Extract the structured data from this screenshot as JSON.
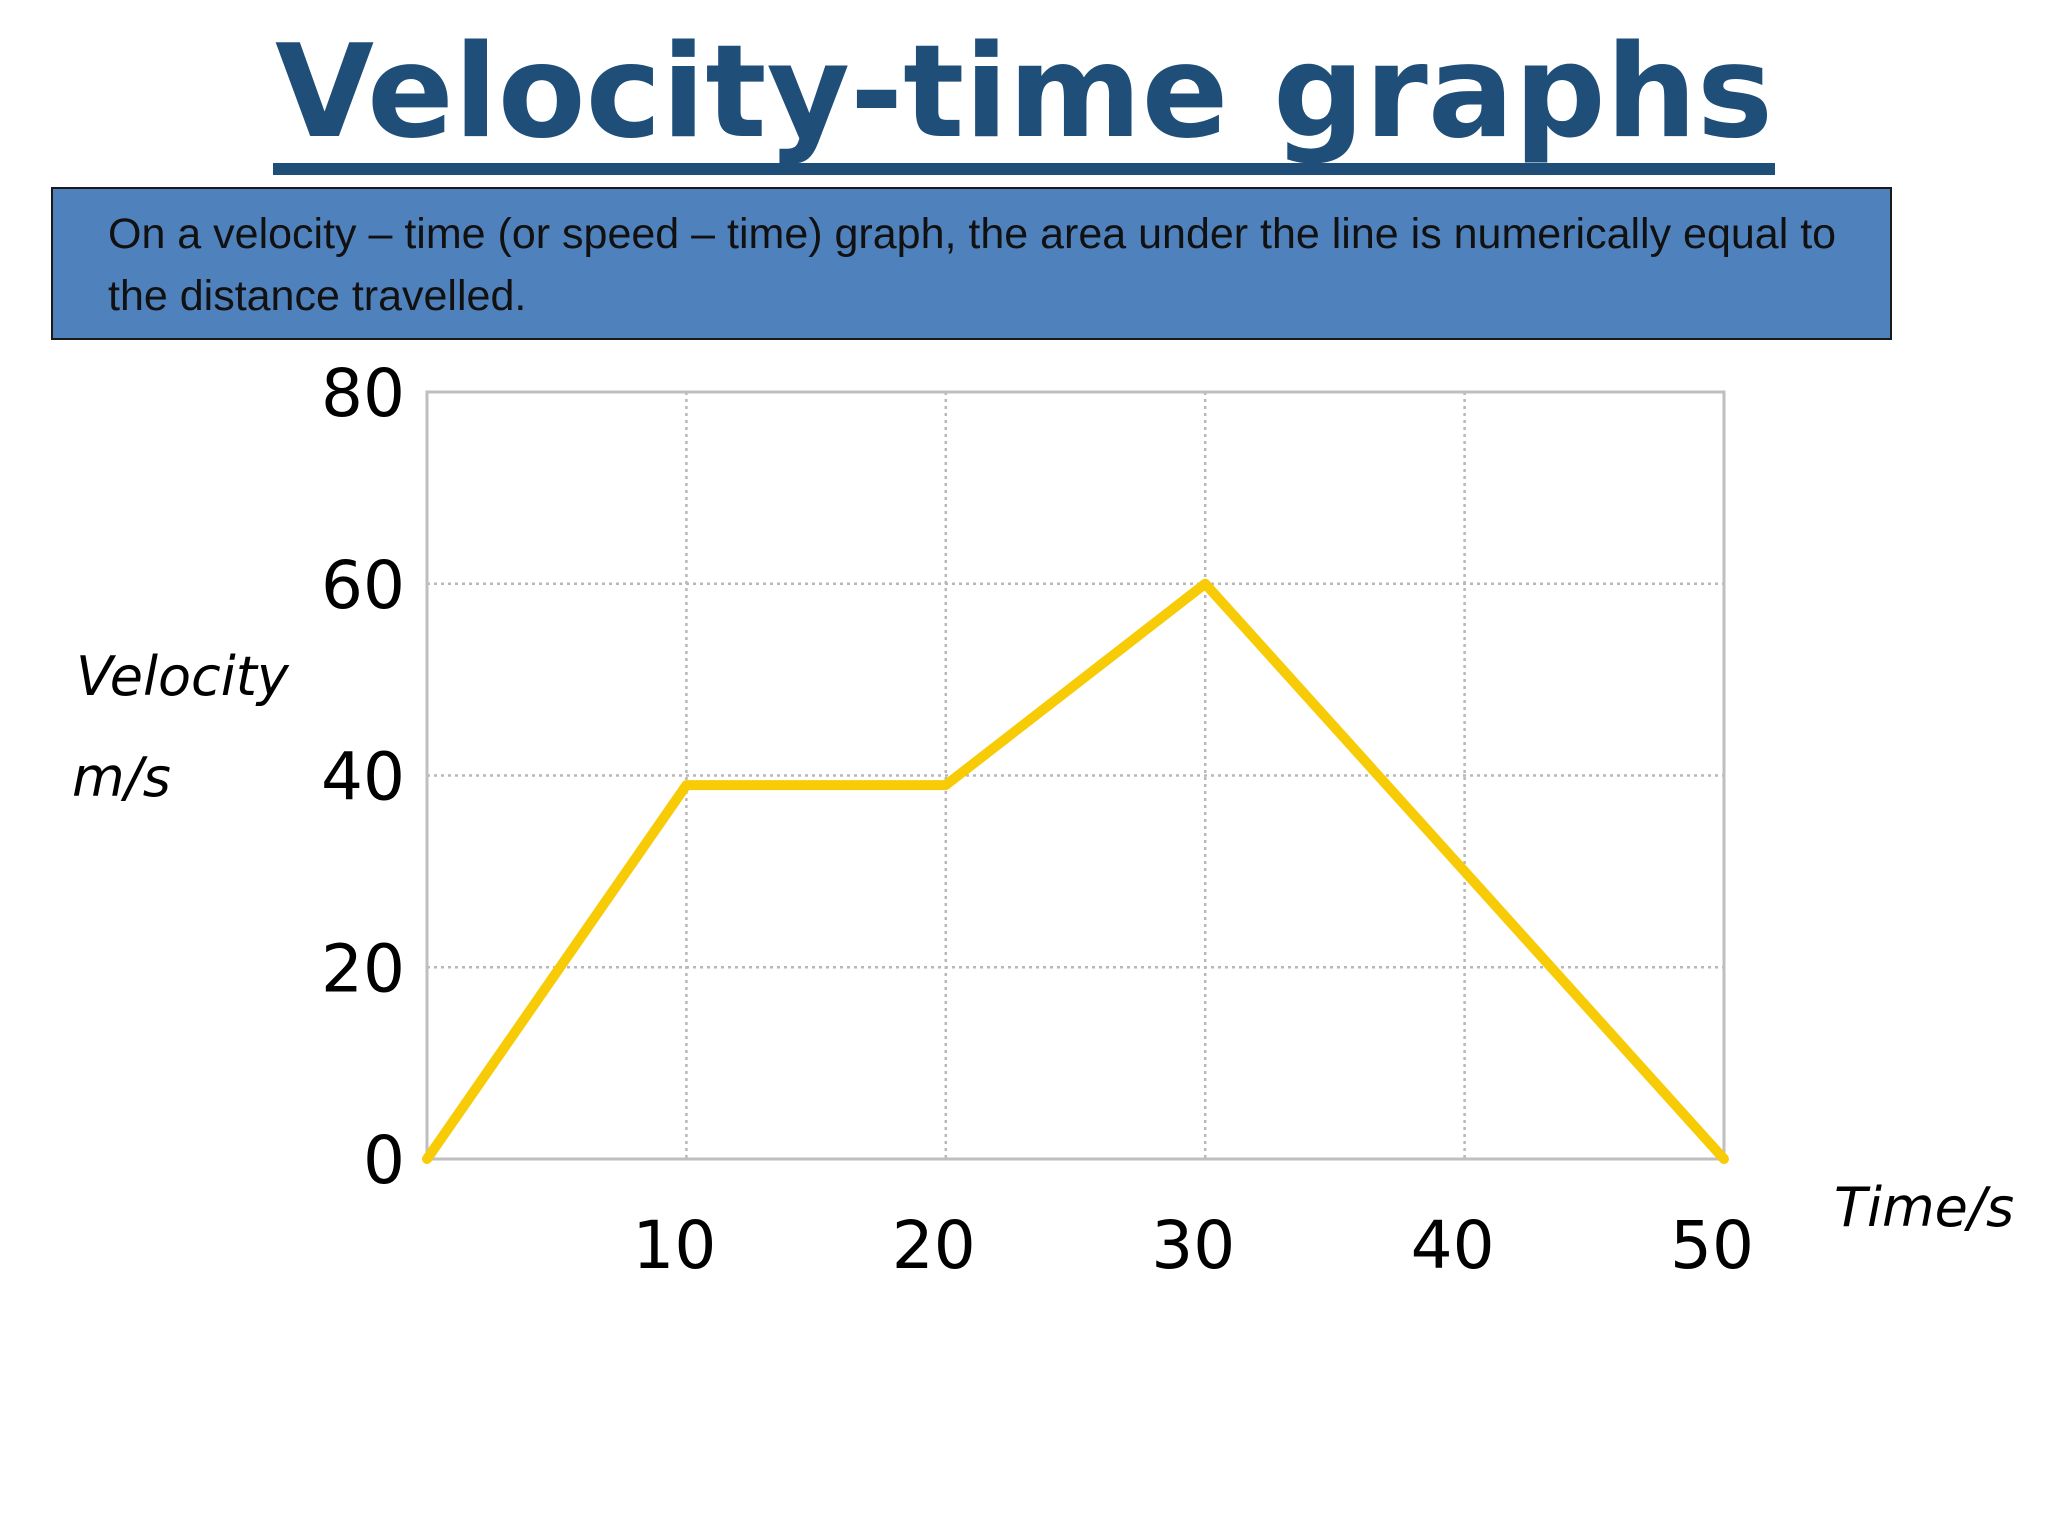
{
  "slide": {
    "title": "Velocity-time graphs",
    "info_text": "On a velocity – time (or speed – time) graph, the area under the line is numerically equal to the distance travelled."
  },
  "chart_data": {
    "type": "line",
    "title": "",
    "ylabel_line1": "Velocity",
    "ylabel_line2": "m/s",
    "xlabel": "Time/s",
    "x_ticks": [
      "10",
      "20",
      "30",
      "40",
      "50"
    ],
    "y_ticks": [
      "0",
      "20",
      "40",
      "60",
      "80"
    ],
    "xlim": [
      0,
      50
    ],
    "ylim": [
      0,
      80
    ],
    "grid": true,
    "series": [
      {
        "x": [
          0,
          10,
          20,
          30,
          50
        ],
        "y": [
          0,
          39,
          39,
          60,
          0
        ],
        "color": "#f7cb05"
      }
    ],
    "colors": {
      "plot_border": "#bfbfbf",
      "grid": "#b8b8b8"
    }
  }
}
